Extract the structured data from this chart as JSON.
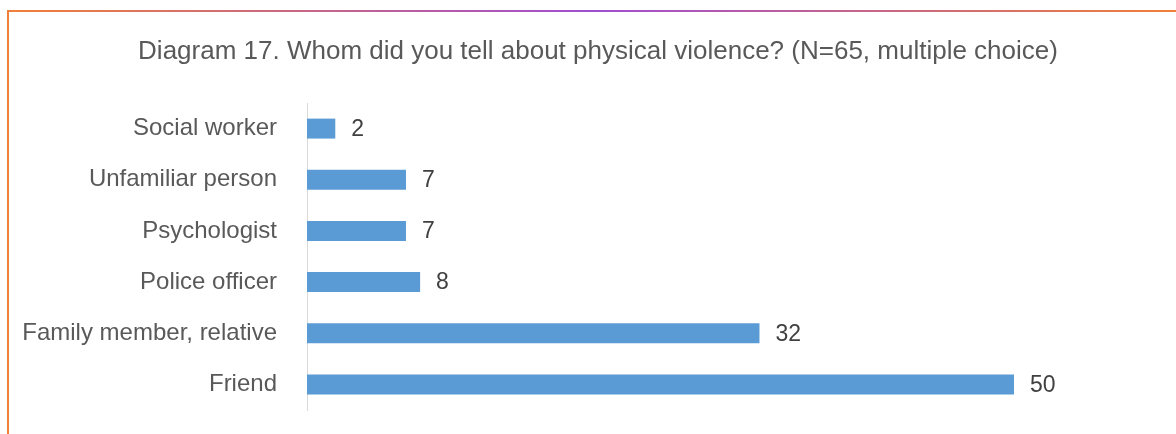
{
  "chart_data": {
    "type": "bar",
    "orientation": "horizontal",
    "title": "Diagram 17. Whom did you tell about physical violence? (N=65, multiple choice)",
    "categories": [
      "Social worker",
      "Unfamiliar person",
      "Psychologist",
      "Police officer",
      "Family member, relative",
      "Friend"
    ],
    "values": [
      2,
      7,
      7,
      8,
      32,
      50
    ],
    "color": "#5b9bd5",
    "data_labels": true,
    "tick_labels": "y"
  }
}
